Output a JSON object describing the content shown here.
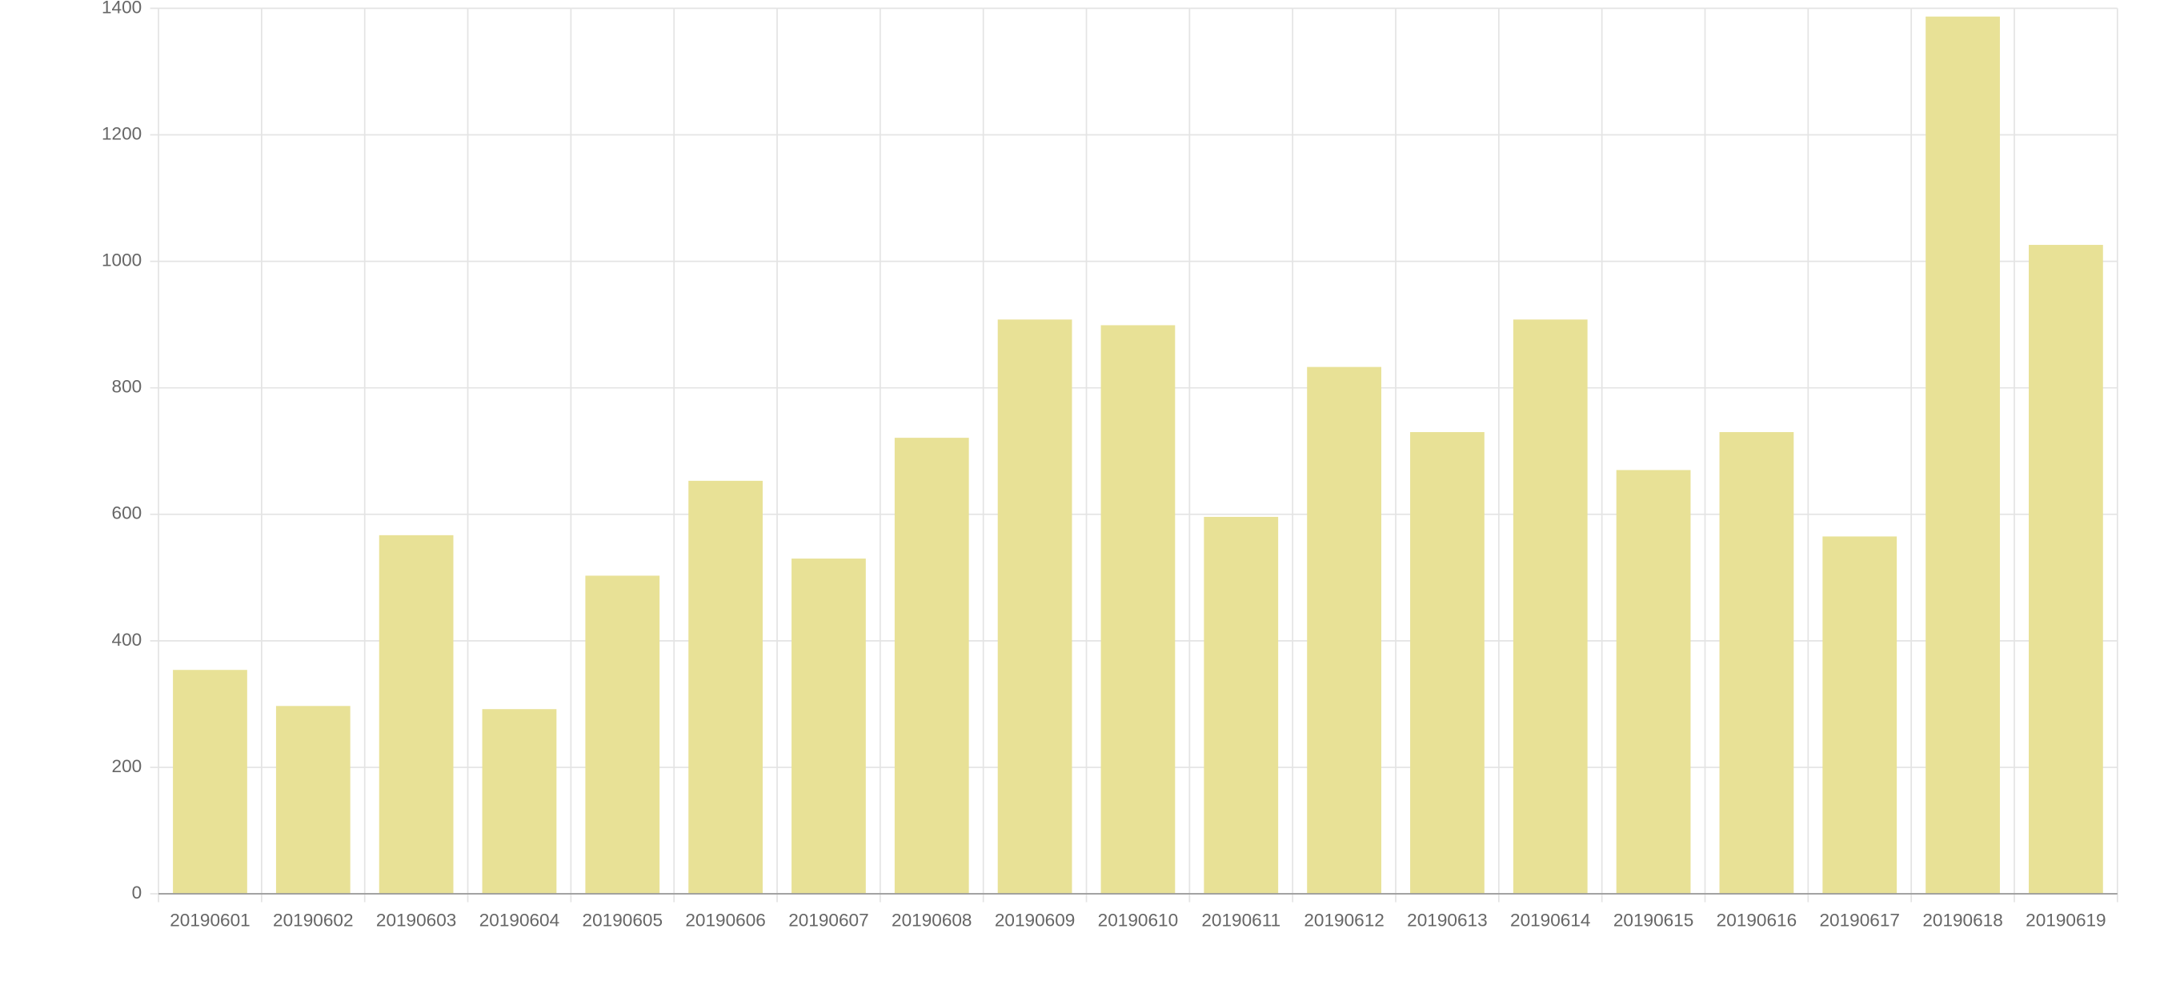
{
  "chart_data": {
    "type": "bar",
    "categories": [
      "20190601",
      "20190602",
      "20190603",
      "20190604",
      "20190605",
      "20190606",
      "20190607",
      "20190608",
      "20190609",
      "20190610",
      "20190611",
      "20190612",
      "20190613",
      "20190614",
      "20190615",
      "20190616",
      "20190617",
      "20190618",
      "20190619"
    ],
    "values": [
      354,
      297,
      567,
      292,
      503,
      653,
      530,
      721,
      908,
      899,
      596,
      833,
      730,
      908,
      670,
      730,
      565,
      1387,
      1026
    ],
    "color": "#e8e196",
    "ylim": [
      0,
      1400
    ],
    "yticks": [
      0,
      200,
      400,
      600,
      800,
      1000,
      1200,
      1400
    ],
    "grid": true
  }
}
